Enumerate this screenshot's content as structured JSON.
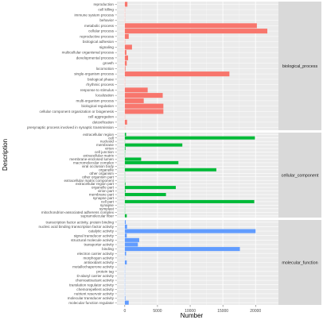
{
  "chart_data": {
    "type": "bar",
    "orientation": "horizontal",
    "xlabel": "Number",
    "ylabel": "Description",
    "xlim": [
      -1200,
      23500
    ],
    "x_ticks": [
      0,
      5000,
      10000,
      15000,
      20000
    ],
    "grid": true,
    "legend": "none",
    "facets": [
      {
        "name": "biological_process",
        "color": "#f8766d",
        "categories": [
          "reproduction",
          "cell killing",
          "immune system process",
          "behavior",
          "metabolic process",
          "cellular process",
          "reproductive process",
          "biological adhesion",
          "signaling",
          "multicellular organismal process",
          "developmental process",
          "growth",
          "locomotion",
          "single-organism process",
          "biological phase",
          "rhythmic process",
          "response to stimulus",
          "localization",
          "multi-organism process",
          "biological regulation",
          "cellular component organization or biogenesis",
          "cell aggregation",
          "detoxification",
          "presynaptic process involved in synaptic transmission"
        ],
        "values": [
          400,
          10,
          20,
          30,
          20200,
          21800,
          600,
          50,
          1100,
          250,
          500,
          300,
          100,
          16000,
          5,
          5,
          3500,
          5800,
          2900,
          5900,
          5900,
          10,
          350,
          5
        ]
      },
      {
        "name": "cellular_component",
        "color": "#00ba38",
        "categories": [
          "extracellular region",
          "cell",
          "nucleoid",
          "membrane",
          "virion",
          "cell junction",
          "extracellular matrix",
          "membrane-enclosed lumen",
          "macromolecular complex",
          "viral occlusion body",
          "organelle",
          "other organism",
          "other organism part",
          "extracellular matrix component",
          "extracellular region part",
          "organelle part",
          "virion part",
          "membrane part",
          "synapse part",
          "cell part",
          "synapse",
          "symplast",
          "mitochondrion-associated adherens complex",
          "supramolecular fiber"
        ],
        "values": [
          200,
          19900,
          10,
          8800,
          100,
          50,
          20,
          2500,
          8200,
          5,
          14000,
          5,
          5,
          5,
          100,
          7800,
          100,
          6300,
          10,
          19800,
          20,
          5,
          5,
          300
        ]
      },
      {
        "name": "molecular_function",
        "color": "#619cff",
        "categories": [
          "transcription factor activity, protein binding",
          "nucleic acid binding transcription factor activity",
          "catalytic activity",
          "signal transducer activity",
          "structural molecule activity",
          "transporter activity",
          "binding",
          "electron carrier activity",
          "morphogen activity",
          "antioxidant activity",
          "metallochaperone activity",
          "protein tag",
          "D-alanyl carrier activity",
          "chemoattractant activity",
          "translation regulator activity",
          "chemorepellent activity",
          "nutrient reservoir activity",
          "molecular transducer activity",
          "molecular function regulator"
        ],
        "values": [
          150,
          350,
          20000,
          300,
          2200,
          2000,
          17600,
          200,
          5,
          300,
          5,
          5,
          5,
          5,
          10,
          5,
          5,
          80,
          600
        ]
      }
    ]
  }
}
